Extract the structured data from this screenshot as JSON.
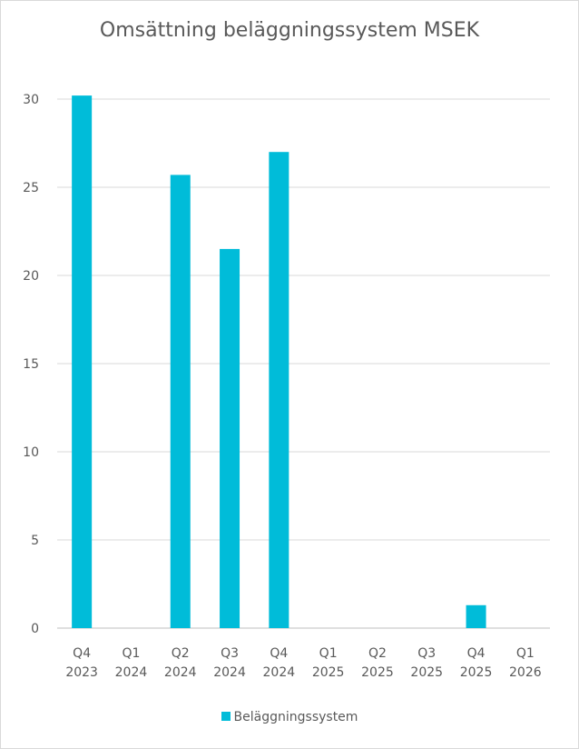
{
  "chart_data": {
    "type": "bar",
    "title": "Omsättning beläggningssystem MSEK",
    "categories": [
      [
        "Q4",
        "2023"
      ],
      [
        "Q1",
        "2024"
      ],
      [
        "Q2",
        "2024"
      ],
      [
        "Q3",
        "2024"
      ],
      [
        "Q4",
        "2024"
      ],
      [
        "Q1",
        "2025"
      ],
      [
        "Q2",
        "2025"
      ],
      [
        "Q3",
        "2025"
      ],
      [
        "Q4",
        "2025"
      ],
      [
        "Q1",
        "2026"
      ]
    ],
    "series": [
      {
        "name": "Beläggningssystem",
        "color": "#00bcd9",
        "values": [
          30.2,
          0,
          25.7,
          21.5,
          27.0,
          0,
          0,
          0,
          1.3,
          0
        ]
      }
    ],
    "y_ticks": [
      0,
      5,
      10,
      15,
      20,
      25,
      30
    ],
    "ylim": [
      0,
      30
    ],
    "grid": true,
    "legend_position": "bottom"
  }
}
